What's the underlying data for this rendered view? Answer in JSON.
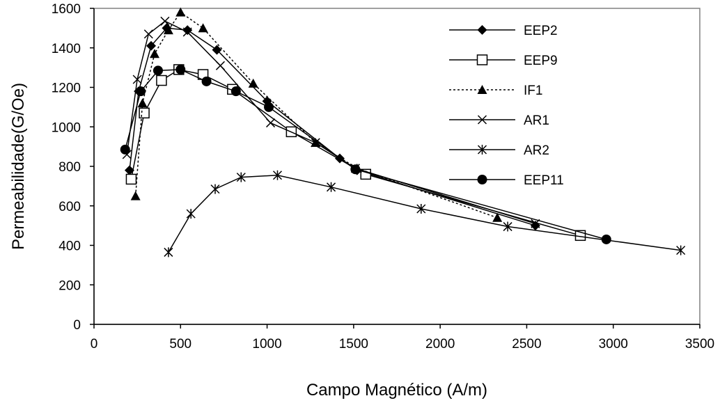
{
  "chart_data": {
    "type": "line",
    "xlabel": "Campo Magnético (A/m)",
    "ylabel": "Permeabilidade(G/Oe)",
    "xlim": [
      0,
      3500
    ],
    "ylim": [
      0,
      1600
    ],
    "xticks": [
      0,
      500,
      1000,
      1500,
      2000,
      2500,
      3000,
      3500
    ],
    "yticks": [
      0,
      200,
      400,
      600,
      800,
      1000,
      1200,
      1400,
      1600
    ],
    "grid": false,
    "legend_position": "top-right",
    "series": [
      {
        "name": "EEP2",
        "marker": "diamond",
        "line": "solid",
        "x": [
          205,
          258,
          330,
          420,
          540,
          710,
          1000,
          1420,
          1520,
          2550
        ],
        "y": [
          780,
          1180,
          1410,
          1500,
          1490,
          1390,
          1130,
          840,
          780,
          500
        ]
      },
      {
        "name": "EEP9",
        "marker": "square-open",
        "line": "solid",
        "x": [
          215,
          290,
          390,
          490,
          630,
          800,
          1140,
          1570,
          2810
        ],
        "y": [
          735,
          1070,
          1235,
          1290,
          1265,
          1190,
          975,
          760,
          450
        ]
      },
      {
        "name": "IF1",
        "marker": "triangle",
        "line": "dotted",
        "x": [
          240,
          280,
          350,
          430,
          500,
          630,
          920,
          1280,
          1520,
          2330
        ],
        "y": [
          650,
          1120,
          1370,
          1490,
          1580,
          1500,
          1220,
          920,
          790,
          540
        ]
      },
      {
        "name": "AR1",
        "marker": "x",
        "line": "solid",
        "x": [
          190,
          250,
          315,
          410,
          540,
          730,
          1020,
          1280,
          1510,
          2550
        ],
        "y": [
          860,
          1240,
          1470,
          1535,
          1480,
          1310,
          1020,
          920,
          790,
          510
        ]
      },
      {
        "name": "AR2",
        "marker": "asterisk",
        "line": "solid",
        "x": [
          430,
          560,
          700,
          850,
          1060,
          1370,
          1890,
          2390,
          3390
        ],
        "y": [
          365,
          560,
          685,
          745,
          755,
          695,
          585,
          495,
          375
        ]
      },
      {
        "name": "EEP11",
        "marker": "circle",
        "line": "solid",
        "x": [
          180,
          270,
          370,
          500,
          650,
          820,
          1010,
          1510,
          2960
        ],
        "y": [
          885,
          1180,
          1285,
          1290,
          1230,
          1180,
          1100,
          785,
          430
        ]
      }
    ]
  }
}
